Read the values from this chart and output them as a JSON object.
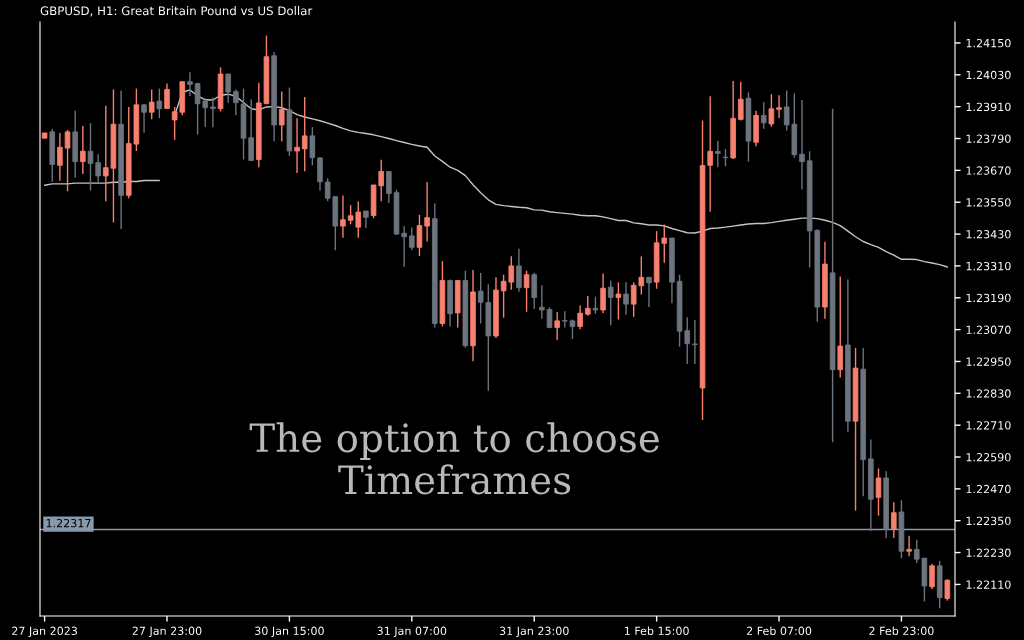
{
  "chart_data": {
    "type": "candlestick",
    "title": "GBPUSD, H1: Great Britain Pound vs US Dollar",
    "categories": [
      "27 Jan 2023",
      null,
      null,
      null,
      null,
      null,
      null,
      null,
      null,
      null,
      null,
      null,
      null,
      null,
      null,
      null,
      "27 Jan 23:00",
      null,
      null,
      null,
      null,
      null,
      null,
      null,
      null,
      null,
      null,
      null,
      null,
      null,
      null,
      null,
      "30 Jan 15:00",
      null,
      null,
      null,
      null,
      null,
      null,
      null,
      null,
      null,
      null,
      null,
      null,
      null,
      null,
      null,
      "31 Jan 07:00",
      null,
      null,
      null,
      null,
      null,
      null,
      null,
      null,
      null,
      null,
      null,
      null,
      null,
      null,
      null,
      "31 Jan 23:00",
      null,
      null,
      null,
      null,
      null,
      null,
      null,
      null,
      null,
      null,
      null,
      null,
      null,
      null,
      null,
      "1 Feb 15:00",
      null,
      null,
      null,
      null,
      null,
      null,
      null,
      null,
      null,
      null,
      null,
      null,
      null,
      null,
      null,
      "2 Feb 07:00",
      null,
      null,
      null,
      null,
      null,
      null,
      null,
      null,
      null,
      null,
      null,
      null,
      null,
      null,
      null,
      "2 Feb 23:00",
      null,
      null,
      null,
      null,
      null,
      null
    ],
    "series": [
      {
        "type": "line",
        "color": "#c4c4c4",
        "values": [
          1.23614,
          1.23619,
          1.23619,
          1.23619,
          1.23622,
          1.23622,
          1.23622,
          1.23622,
          1.23622,
          1.23625,
          1.23625,
          1.23628,
          1.23628,
          1.23632,
          1.23632,
          1.23632,
          null,
          1.23877,
          1.23964,
          1.23973,
          1.23951,
          1.23936,
          1.23935,
          1.23953,
          1.23957,
          1.23949,
          1.23926,
          1.23902,
          1.23898,
          1.23909,
          1.2391,
          1.23906,
          1.23895,
          1.2388,
          1.23871,
          1.23864,
          1.23857,
          1.23848,
          1.23839,
          1.23828,
          1.23819,
          1.23813,
          1.23809,
          1.23804,
          1.23797,
          1.2379,
          1.23782,
          1.23775,
          1.23768,
          1.23762,
          1.23757,
          1.23724,
          1.23704,
          1.23682,
          1.2367,
          1.2365,
          1.23616,
          1.23586,
          1.23559,
          1.23542,
          1.23537,
          1.23534,
          1.23531,
          1.23529,
          1.23521,
          1.2352,
          1.23514,
          1.23511,
          1.23508,
          1.23505,
          1.23501,
          1.23499,
          1.23499,
          1.23495,
          1.23488,
          1.23481,
          1.23481,
          1.23472,
          1.23469,
          1.23464,
          1.23464,
          1.23461,
          1.23451,
          1.23443,
          1.23435,
          1.23434,
          1.23441,
          1.23451,
          1.23453,
          1.23456,
          1.2346,
          1.23464,
          1.23468,
          1.2347,
          1.2347,
          1.23473,
          1.23478,
          1.23482,
          1.23486,
          1.2349,
          1.2349,
          1.23488,
          1.23482,
          1.23474,
          1.23462,
          1.23441,
          1.2342,
          1.23402,
          1.2339,
          1.2338,
          1.23364,
          1.23351,
          1.23335,
          1.23335,
          1.23334,
          1.23326,
          1.23321,
          1.23315,
          1.23306
        ]
      },
      {
        "ohlc": [
          [
            1.23791,
            1.23811,
            1.23791,
            1.23811
          ],
          [
            1.23815,
            1.23826,
            1.23627,
            1.23692
          ],
          [
            1.23689,
            1.23811,
            1.23631,
            1.23757
          ],
          [
            1.23754,
            1.23822,
            1.23591,
            1.23815
          ],
          [
            1.23815,
            1.23895,
            1.23642,
            1.23703
          ],
          [
            1.23703,
            1.23837,
            1.23656,
            1.23742
          ],
          [
            1.23742,
            1.23848,
            1.23594,
            1.23696
          ],
          [
            1.23699,
            1.23731,
            1.23623,
            1.23649
          ],
          [
            1.23649,
            1.23913,
            1.23554,
            1.2368
          ],
          [
            1.23678,
            1.23975,
            1.23474,
            1.23844
          ],
          [
            1.23844,
            1.23971,
            1.23449,
            1.23576
          ],
          [
            1.23576,
            1.23909,
            1.23565,
            1.23771
          ],
          [
            1.23769,
            1.23978,
            1.23743,
            1.23917
          ],
          [
            1.23917,
            1.2392,
            1.23812,
            1.23889
          ],
          [
            1.23889,
            1.23975,
            1.23863,
            1.23927
          ],
          [
            1.23931,
            1.23978,
            1.23867,
            1.23902
          ],
          [
            1.23903,
            1.23997,
            1.23902,
            1.23975
          ],
          [
            1.2386,
            1.23909,
            1.23785,
            1.23891
          ],
          [
            1.23889,
            1.24006,
            1.23878,
            1.24004
          ],
          [
            1.24004,
            1.2404,
            1.2395,
            1.23994
          ],
          [
            1.23997,
            1.24,
            1.23805,
            1.23921
          ],
          [
            1.23931,
            1.23942,
            1.23833,
            1.23906
          ],
          [
            1.23909,
            1.23945,
            1.23832,
            1.23903
          ],
          [
            1.23903,
            1.24058,
            1.23892,
            1.24033
          ],
          [
            1.24033,
            1.24033,
            1.23925,
            1.23965
          ],
          [
            1.23967,
            1.23975,
            1.23878,
            1.23925
          ],
          [
            1.2392,
            1.23978,
            1.23711,
            1.23791
          ],
          [
            1.23793,
            1.23938,
            1.23707,
            1.23707
          ],
          [
            1.23711,
            1.24,
            1.23682,
            1.23924
          ],
          [
            1.23921,
            1.24178,
            1.2392,
            1.24098
          ],
          [
            1.24102,
            1.24116,
            1.2378,
            1.23841
          ],
          [
            1.23841,
            1.23967,
            1.2378,
            1.239
          ],
          [
            1.23898,
            1.23982,
            1.23725,
            1.23743
          ],
          [
            1.23743,
            1.23866,
            1.2366,
            1.23757
          ],
          [
            1.23751,
            1.23946,
            1.23667,
            1.238
          ],
          [
            1.238,
            1.23833,
            1.23689,
            1.23718
          ],
          [
            1.23717,
            1.2372,
            1.23594,
            1.23627
          ],
          [
            1.23626,
            1.2364,
            1.23554,
            1.23565
          ],
          [
            1.23571,
            1.23571,
            1.23369,
            1.2346
          ],
          [
            1.2346,
            1.23575,
            1.23416,
            1.23484
          ],
          [
            1.23482,
            1.23539,
            1.23467,
            1.23499
          ],
          [
            1.23456,
            1.23553,
            1.23416,
            1.23513
          ],
          [
            1.23517,
            1.23517,
            1.23453,
            1.23493
          ],
          [
            1.235,
            1.23615,
            1.2349,
            1.23615
          ],
          [
            1.23612,
            1.2371,
            1.23554,
            1.23666
          ],
          [
            1.23666,
            1.23666,
            1.23547,
            1.23583
          ],
          [
            1.23586,
            1.23597,
            1.23427,
            1.2343
          ],
          [
            1.23433,
            1.23459,
            1.23307,
            1.2342
          ],
          [
            1.23423,
            1.23455,
            1.23369,
            1.2338
          ],
          [
            1.2338,
            1.23502,
            1.23347,
            1.23462
          ],
          [
            1.2346,
            1.23626,
            1.23402,
            1.23492
          ],
          [
            1.23488,
            1.23546,
            1.23078,
            1.23093
          ],
          [
            1.23093,
            1.23328,
            1.23082,
            1.23255
          ],
          [
            1.23255,
            1.23259,
            1.23082,
            1.2313
          ],
          [
            1.23133,
            1.23255,
            1.23078,
            1.23255
          ],
          [
            1.23255,
            1.23292,
            1.23002,
            1.23009
          ],
          [
            1.23009,
            1.23295,
            1.22951,
            1.23212
          ],
          [
            1.23215,
            1.23284,
            1.23093,
            1.23173
          ],
          [
            1.23172,
            1.23241,
            1.22839,
            1.23046
          ],
          [
            1.23046,
            1.23267,
            1.23038,
            1.23219
          ],
          [
            1.23216,
            1.23277,
            1.23115,
            1.23252
          ],
          [
            1.23249,
            1.23346,
            1.2322,
            1.2331
          ],
          [
            1.2331,
            1.23375,
            1.23213,
            1.23228
          ],
          [
            1.23228,
            1.23292,
            1.23137,
            1.23277
          ],
          [
            1.23277,
            1.23284,
            1.23148,
            1.23191
          ],
          [
            1.23154,
            1.23237,
            1.23111,
            1.23144
          ],
          [
            1.23146,
            1.23154,
            1.23075,
            1.23078
          ],
          [
            1.23078,
            1.23136,
            1.23031,
            1.23103
          ],
          [
            1.23104,
            1.23139,
            1.23078,
            1.23102
          ],
          [
            1.23103,
            1.23108,
            1.23035,
            1.23082
          ],
          [
            1.23082,
            1.23161,
            1.23071,
            1.23132
          ],
          [
            1.23128,
            1.23197,
            1.23122,
            1.2315
          ],
          [
            1.2315,
            1.23194,
            1.2313,
            1.23144
          ],
          [
            1.23144,
            1.23281,
            1.23133,
            1.23226
          ],
          [
            1.2323,
            1.23255,
            1.23086,
            1.23191
          ],
          [
            1.23191,
            1.23248,
            1.23108,
            1.23204
          ],
          [
            1.23204,
            1.23248,
            1.23126,
            1.23166
          ],
          [
            1.23166,
            1.23248,
            1.23118,
            1.23237
          ],
          [
            1.23235,
            1.23346,
            1.23202,
            1.23267
          ],
          [
            1.23267,
            1.23267,
            1.23155,
            1.23246
          ],
          [
            1.23249,
            1.23441,
            1.23224,
            1.23397
          ],
          [
            1.23395,
            1.23466,
            1.23322,
            1.23415
          ],
          [
            1.23415,
            1.23415,
            1.23169,
            1.23249
          ],
          [
            1.23252,
            1.23277,
            1.23006,
            1.23064
          ],
          [
            1.23066,
            1.23117,
            1.2294,
            1.23017
          ],
          [
            1.23016,
            1.23106,
            1.2294,
            1.23013
          ],
          [
            1.2285,
            1.23858,
            1.22729,
            1.23688
          ],
          [
            1.23689,
            1.23949,
            1.23514,
            1.23742
          ],
          [
            1.23741,
            1.23782,
            1.23682,
            1.23734
          ],
          [
            1.2372,
            1.2375,
            1.23685,
            1.23718
          ],
          [
            1.23717,
            1.24007,
            1.23713,
            1.23866
          ],
          [
            1.23862,
            1.24004,
            1.23858,
            1.23938
          ],
          [
            1.23942,
            1.23964,
            1.23703,
            1.2378
          ],
          [
            1.23776,
            1.23895,
            1.23761,
            1.23877
          ],
          [
            1.23877,
            1.23927,
            1.23827,
            1.23849
          ],
          [
            1.23845,
            1.23957,
            1.23834,
            1.23902
          ],
          [
            1.239,
            1.23953,
            1.23867,
            1.23906
          ],
          [
            1.23909,
            1.23971,
            1.2382,
            1.23841
          ],
          [
            1.23844,
            1.2396,
            1.23718,
            1.23729
          ],
          [
            1.23731,
            1.23935,
            1.23598,
            1.23703
          ],
          [
            1.23706,
            1.23742,
            1.23304,
            1.23442
          ],
          [
            1.23444,
            1.23448,
            1.231,
            1.23155
          ],
          [
            1.23155,
            1.23401,
            1.23111,
            1.23317
          ],
          [
            1.23284,
            1.23902,
            1.22646,
            1.22919
          ],
          [
            1.22919,
            1.2327,
            1.2289,
            1.23008
          ],
          [
            1.23012,
            1.23259,
            1.22685,
            1.22725
          ],
          [
            1.22725,
            1.23001,
            1.22388,
            1.22925
          ],
          [
            1.22921,
            1.23001,
            1.22442,
            1.2258
          ],
          [
            1.22583,
            1.22656,
            1.22311,
            1.22431
          ],
          [
            1.22438,
            1.22547,
            1.22369,
            1.22511
          ],
          [
            1.22511,
            1.22536,
            1.22285,
            1.22318
          ],
          [
            1.22318,
            1.2242,
            1.22285,
            1.2238
          ],
          [
            1.22383,
            1.22427,
            1.22209,
            1.22235
          ],
          [
            1.22235,
            1.22293,
            1.22216,
            1.22242
          ],
          [
            1.22242,
            1.22278,
            1.22191,
            1.22205
          ],
          [
            1.22209,
            1.22209,
            1.22046,
            1.22104
          ],
          [
            1.22101,
            1.22187,
            1.22093,
            1.2218
          ],
          [
            1.2218,
            1.22198,
            1.2202,
            1.2206
          ],
          [
            1.22057,
            1.22129,
            1.22049,
            1.22126
          ]
        ],
        "colors": [
          "#f7806f",
          "#6c747e",
          "#f7806f",
          "#f7806f",
          "#6c747e",
          "#f7806f",
          "#6c747e",
          "#6c747e",
          "#f7806f",
          "#f7806f",
          "#6c747e",
          "#f7806f",
          "#f7806f",
          "#6c747e",
          "#f7806f",
          "#6c747e",
          "#f7806f",
          "#f7806f",
          "#f7806f",
          "#6c747e",
          "#6c747e",
          "#6c747e",
          "#6c747e",
          "#f7806f",
          "#6c747e",
          "#6c747e",
          "#6c747e",
          "#6c747e",
          "#f7806f",
          "#f7806f",
          "#6c747e",
          "#f7806f",
          "#6c747e",
          "#f7806f",
          "#f7806f",
          "#6c747e",
          "#6c747e",
          "#6c747e",
          "#6c747e",
          "#f7806f",
          "#f7806f",
          "#f7806f",
          "#6c747e",
          "#f7806f",
          "#f7806f",
          "#6c747e",
          "#6c747e",
          "#6c747e",
          "#6c747e",
          "#f7806f",
          "#f7806f",
          "#6c747e",
          "#f7806f",
          "#6c747e",
          "#f7806f",
          "#6c747e",
          "#f7806f",
          "#6c747e",
          "#6c747e",
          "#f7806f",
          "#f7806f",
          "#f7806f",
          "#6c747e",
          "#f7806f",
          "#6c747e",
          "#6c747e",
          "#6c747e",
          "#f7806f",
          "#6c747e",
          "#6c747e",
          "#f7806f",
          "#f7806f",
          "#6c747e",
          "#f7806f",
          "#6c747e",
          "#f7806f",
          "#6c747e",
          "#f7806f",
          "#f7806f",
          "#6c747e",
          "#f7806f",
          "#f7806f",
          "#6c747e",
          "#6c747e",
          "#6c747e",
          "#6c747e",
          "#f7806f",
          "#f7806f",
          "#6c747e",
          "#6c747e",
          "#f7806f",
          "#f7806f",
          "#6c747e",
          "#f7806f",
          "#6c747e",
          "#f7806f",
          "#f7806f",
          "#6c747e",
          "#6c747e",
          "#6c747e",
          "#6c747e",
          "#6c747e",
          "#f7806f",
          "#6c747e",
          "#f7806f",
          "#6c747e",
          "#f7806f",
          "#6c747e",
          "#6c747e",
          "#f7806f",
          "#6c747e",
          "#f7806f",
          "#6c747e",
          "#f7806f",
          "#6c747e",
          "#6c747e",
          "#f7806f",
          "#6c747e",
          "#f7806f"
        ]
      }
    ],
    "ylim": [
      1.21991,
      1.24229
    ],
    "yticks": [
      {
        "value": 1.2415,
        "label": "1.24150"
      },
      {
        "value": 1.2403,
        "label": "1.24030"
      },
      {
        "value": 1.2391,
        "label": "1.23910"
      },
      {
        "value": 1.2379,
        "label": "1.23790"
      },
      {
        "value": 1.2367,
        "label": "1.23670"
      },
      {
        "value": 1.2355,
        "label": "1.23550"
      },
      {
        "value": 1.2343,
        "label": "1.23430"
      },
      {
        "value": 1.2331,
        "label": "1.23310"
      },
      {
        "value": 1.2319,
        "label": "1.23190"
      },
      {
        "value": 1.2307,
        "label": "1.23070"
      },
      {
        "value": 1.2295,
        "label": "1.22950"
      },
      {
        "value": 1.2283,
        "label": "1.22830"
      },
      {
        "value": 1.2271,
        "label": "1.22710"
      },
      {
        "value": 1.2259,
        "label": "1.22590"
      },
      {
        "value": 1.2247,
        "label": "1.22470"
      },
      {
        "value": 1.2235,
        "label": "1.22350"
      },
      {
        "value": 1.2223,
        "label": "1.22230"
      },
      {
        "value": 1.2211,
        "label": "1.22110"
      }
    ],
    "ref_lines": [
      {
        "axis": "y",
        "value": 1.22317,
        "label": "1.22317",
        "color": "#8799ad"
      }
    ],
    "annotations": [
      "The option to choose\nTimeframes"
    ],
    "grid": false
  }
}
